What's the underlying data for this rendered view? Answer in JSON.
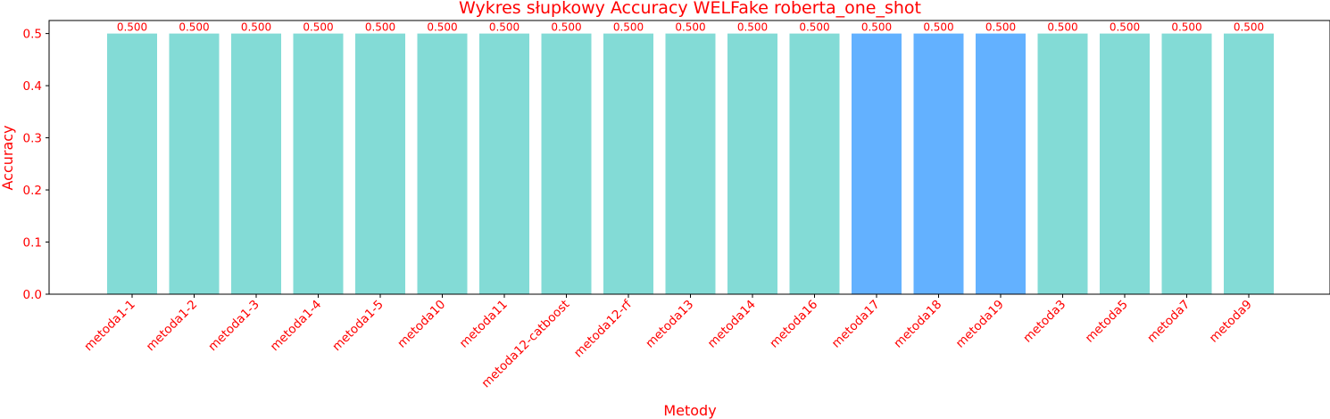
{
  "chart_data": {
    "type": "bar",
    "title": "Wykres słupkowy Accuracy WELFake roberta_one_shot",
    "xlabel": "Metody",
    "ylabel": "Accuracy",
    "categories": [
      "metoda1-1",
      "metoda1-2",
      "metoda1-3",
      "metoda1-4",
      "metoda1-5",
      "metoda10",
      "metoda11",
      "metoda12-catboost",
      "metoda12-rf",
      "metoda13",
      "metoda14",
      "metoda16",
      "metoda17",
      "metoda18",
      "metoda19",
      "metoda3",
      "metoda5",
      "metoda7",
      "metoda9"
    ],
    "values": [
      0.5,
      0.5,
      0.5,
      0.5,
      0.5,
      0.5,
      0.5,
      0.5,
      0.5,
      0.5,
      0.5,
      0.5,
      0.5,
      0.5,
      0.5,
      0.5,
      0.5,
      0.5,
      0.5
    ],
    "value_labels": [
      "0.500",
      "0.500",
      "0.500",
      "0.500",
      "0.500",
      "0.500",
      "0.500",
      "0.500",
      "0.500",
      "0.500",
      "0.500",
      "0.500",
      "0.500",
      "0.500",
      "0.500",
      "0.500",
      "0.500",
      "0.500",
      "0.500"
    ],
    "bar_colors": [
      "#83dbd6",
      "#83dbd6",
      "#83dbd6",
      "#83dbd6",
      "#83dbd6",
      "#83dbd6",
      "#83dbd6",
      "#83dbd6",
      "#83dbd6",
      "#83dbd6",
      "#83dbd6",
      "#83dbd6",
      "#63b1ff",
      "#63b1ff",
      "#63b1ff",
      "#83dbd6",
      "#83dbd6",
      "#83dbd6",
      "#83dbd6"
    ],
    "yticks": [
      0.0,
      0.1,
      0.2,
      0.3,
      0.4,
      0.5
    ],
    "ytick_labels": [
      "0.0",
      "0.1",
      "0.2",
      "0.3",
      "0.4",
      "0.5"
    ],
    "ylim": [
      0,
      0.525
    ],
    "grid": false,
    "text_color": "#ff0000"
  }
}
